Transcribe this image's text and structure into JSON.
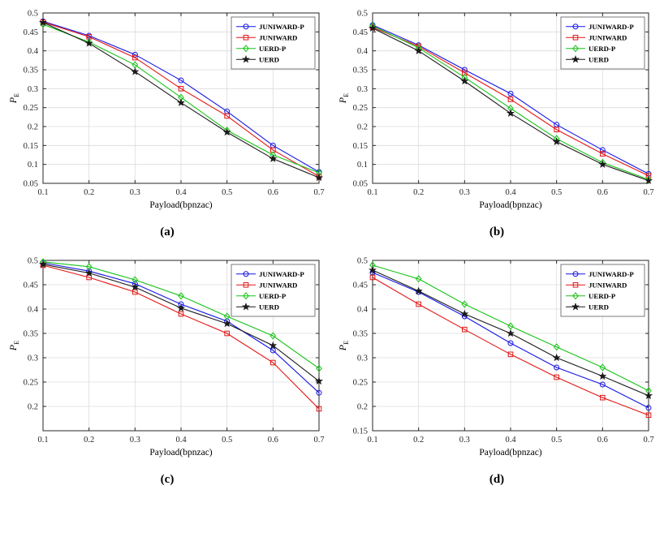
{
  "figure": {
    "background": "#ffffff",
    "panel_captions": [
      "(a)",
      "(b)",
      "(c)",
      "(d)"
    ]
  },
  "chart_data": [
    {
      "type": "line",
      "caption": "(a)",
      "xlabel": "Payload(bpnzac)",
      "ylabel": {
        "main": "P",
        "sub": "E"
      },
      "xlim": [
        0.1,
        0.7
      ],
      "ylim": [
        0.05,
        0.5
      ],
      "xticks": [
        0.1,
        0.2,
        0.3,
        0.4,
        0.5,
        0.6,
        0.7
      ],
      "yticks": [
        0.05,
        0.1,
        0.15,
        0.2,
        0.25,
        0.3,
        0.35,
        0.4,
        0.45,
        0.5
      ],
      "grid": true,
      "legend_position": "top-right",
      "x": [
        0.1,
        0.2,
        0.3,
        0.4,
        0.5,
        0.6,
        0.7
      ],
      "series": [
        {
          "name": "JUNIWARD-P",
          "color": "#1515e6",
          "marker": "circle",
          "values": [
            0.478,
            0.44,
            0.39,
            0.322,
            0.24,
            0.15,
            0.08
          ]
        },
        {
          "name": "JUNIWARD",
          "color": "#e31515",
          "marker": "square",
          "values": [
            0.476,
            0.437,
            0.382,
            0.3,
            0.228,
            0.138,
            0.068
          ]
        },
        {
          "name": "UERD-P",
          "color": "#17c417",
          "marker": "diamond",
          "values": [
            0.47,
            0.423,
            0.363,
            0.277,
            0.19,
            0.125,
            0.078
          ]
        },
        {
          "name": "UERD",
          "color": "#1a1a1a",
          "marker": "star",
          "values": [
            0.475,
            0.42,
            0.345,
            0.263,
            0.185,
            0.115,
            0.065
          ]
        }
      ]
    },
    {
      "type": "line",
      "caption": "(b)",
      "xlabel": "Payload(bpnzac)",
      "ylabel": {
        "main": "P",
        "sub": "E"
      },
      "xlim": [
        0.1,
        0.7
      ],
      "ylim": [
        0.05,
        0.5
      ],
      "xticks": [
        0.1,
        0.2,
        0.3,
        0.4,
        0.5,
        0.6,
        0.7
      ],
      "yticks": [
        0.05,
        0.1,
        0.15,
        0.2,
        0.25,
        0.3,
        0.35,
        0.4,
        0.45,
        0.5
      ],
      "grid": true,
      "legend_position": "top-right",
      "x": [
        0.1,
        0.2,
        0.3,
        0.4,
        0.5,
        0.6,
        0.7
      ],
      "series": [
        {
          "name": "JUNIWARD-P",
          "color": "#1515e6",
          "marker": "circle",
          "values": [
            0.468,
            0.415,
            0.35,
            0.287,
            0.205,
            0.138,
            0.075
          ]
        },
        {
          "name": "JUNIWARD",
          "color": "#e31515",
          "marker": "square",
          "values": [
            0.462,
            0.412,
            0.342,
            0.272,
            0.192,
            0.128,
            0.07
          ]
        },
        {
          "name": "UERD-P",
          "color": "#17c417",
          "marker": "diamond",
          "values": [
            0.466,
            0.408,
            0.33,
            0.248,
            0.168,
            0.105,
            0.06
          ]
        },
        {
          "name": "UERD",
          "color": "#1a1a1a",
          "marker": "star",
          "values": [
            0.46,
            0.4,
            0.32,
            0.235,
            0.16,
            0.1,
            0.057
          ]
        }
      ]
    },
    {
      "type": "line",
      "caption": "(c)",
      "xlabel": "Payload(bpnzac)",
      "ylabel": {
        "main": "P",
        "sub": "E"
      },
      "xlim": [
        0.1,
        0.7
      ],
      "ylim": [
        0.15,
        0.5
      ],
      "xticks": [
        0.1,
        0.2,
        0.3,
        0.4,
        0.5,
        0.6,
        0.7
      ],
      "yticks": [
        0.2,
        0.25,
        0.3,
        0.35,
        0.4,
        0.45,
        0.5
      ],
      "grid": true,
      "legend_position": "top-right",
      "x": [
        0.1,
        0.2,
        0.3,
        0.4,
        0.5,
        0.6,
        0.7
      ],
      "series": [
        {
          "name": "JUNIWARD-P",
          "color": "#1515e6",
          "marker": "circle",
          "values": [
            0.495,
            0.478,
            0.452,
            0.41,
            0.375,
            0.315,
            0.228
          ]
        },
        {
          "name": "JUNIWARD",
          "color": "#e31515",
          "marker": "square",
          "values": [
            0.49,
            0.465,
            0.435,
            0.39,
            0.35,
            0.29,
            0.195
          ]
        },
        {
          "name": "UERD-P",
          "color": "#17c417",
          "marker": "diamond",
          "values": [
            0.497,
            0.487,
            0.46,
            0.427,
            0.385,
            0.345,
            0.278
          ]
        },
        {
          "name": "UERD",
          "color": "#1a1a1a",
          "marker": "star",
          "values": [
            0.492,
            0.474,
            0.445,
            0.402,
            0.37,
            0.325,
            0.252
          ]
        }
      ]
    },
    {
      "type": "line",
      "caption": "(d)",
      "xlabel": "Payload(bpnzac)",
      "ylabel": {
        "main": "P",
        "sub": "E"
      },
      "xlim": [
        0.1,
        0.7
      ],
      "ylim": [
        0.15,
        0.5
      ],
      "xticks": [
        0.1,
        0.2,
        0.3,
        0.4,
        0.5,
        0.6,
        0.7
      ],
      "yticks": [
        0.15,
        0.2,
        0.25,
        0.3,
        0.35,
        0.4,
        0.45,
        0.5
      ],
      "grid": true,
      "legend_position": "top-right",
      "x": [
        0.1,
        0.2,
        0.3,
        0.4,
        0.5,
        0.6,
        0.7
      ],
      "series": [
        {
          "name": "JUNIWARD-P",
          "color": "#1515e6",
          "marker": "circle",
          "values": [
            0.475,
            0.435,
            0.385,
            0.33,
            0.28,
            0.245,
            0.197
          ]
        },
        {
          "name": "JUNIWARD",
          "color": "#e31515",
          "marker": "square",
          "values": [
            0.465,
            0.41,
            0.358,
            0.307,
            0.26,
            0.218,
            0.182
          ]
        },
        {
          "name": "UERD-P",
          "color": "#17c417",
          "marker": "diamond",
          "values": [
            0.49,
            0.462,
            0.41,
            0.365,
            0.322,
            0.28,
            0.232
          ]
        },
        {
          "name": "UERD",
          "color": "#1a1a1a",
          "marker": "star",
          "values": [
            0.48,
            0.437,
            0.39,
            0.35,
            0.3,
            0.262,
            0.222
          ]
        }
      ]
    }
  ]
}
